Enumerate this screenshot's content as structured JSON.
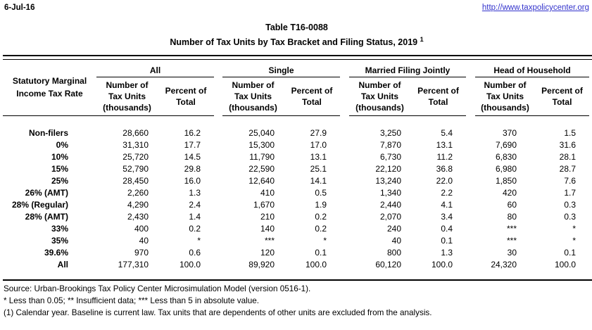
{
  "header": {
    "date": "6-Jul-16",
    "url": "http://www.taxpolicycenter.org",
    "link_color": "#3333cc"
  },
  "title": {
    "line1": "Table T16-0088",
    "line2": "Number of Tax Units by Tax Bracket and Filing Status, 2019",
    "footnote_marker": "1"
  },
  "table": {
    "stub_header": "Statutory Marginal Income Tax Rate",
    "group_headers": [
      "All",
      "Single",
      "Married Filing Jointly",
      "Head of Household"
    ],
    "subheader_number": "Number of Tax Units (thousands)",
    "subheader_percent": "Percent of Total",
    "rows": [
      {
        "label": "Non-filers",
        "values": [
          "28,660",
          "16.2",
          "25,040",
          "27.9",
          "3,250",
          "5.4",
          "370",
          "1.5"
        ]
      },
      {
        "label": "0%",
        "values": [
          "31,310",
          "17.7",
          "15,300",
          "17.0",
          "7,870",
          "13.1",
          "7,690",
          "31.6"
        ]
      },
      {
        "label": "10%",
        "values": [
          "25,720",
          "14.5",
          "11,790",
          "13.1",
          "6,730",
          "11.2",
          "6,830",
          "28.1"
        ]
      },
      {
        "label": "15%",
        "values": [
          "52,790",
          "29.8",
          "22,590",
          "25.1",
          "22,120",
          "36.8",
          "6,980",
          "28.7"
        ]
      },
      {
        "label": "25%",
        "values": [
          "28,450",
          "16.0",
          "12,640",
          "14.1",
          "13,240",
          "22.0",
          "1,850",
          "7.6"
        ]
      },
      {
        "label": "26% (AMT)",
        "values": [
          "2,260",
          "1.3",
          "410",
          "0.5",
          "1,340",
          "2.2",
          "420",
          "1.7"
        ]
      },
      {
        "label": "28% (Regular)",
        "values": [
          "4,290",
          "2.4",
          "1,670",
          "1.9",
          "2,440",
          "4.1",
          "60",
          "0.3"
        ]
      },
      {
        "label": "28% (AMT)",
        "values": [
          "2,430",
          "1.4",
          "210",
          "0.2",
          "2,070",
          "3.4",
          "80",
          "0.3"
        ]
      },
      {
        "label": "33%",
        "values": [
          "400",
          "0.2",
          "140",
          "0.2",
          "240",
          "0.4",
          "***",
          "*"
        ]
      },
      {
        "label": "35%",
        "values": [
          "40",
          "*",
          "***",
          "*",
          "40",
          "0.1",
          "***",
          "*"
        ]
      },
      {
        "label": "39.6%",
        "values": [
          "970",
          "0.6",
          "120",
          "0.1",
          "800",
          "1.3",
          "30",
          "0.1"
        ]
      },
      {
        "label": "All",
        "values": [
          "177,310",
          "100.0",
          "89,920",
          "100.0",
          "60,120",
          "100.0",
          "24,320",
          "100.0"
        ]
      }
    ]
  },
  "footnotes": {
    "source": "Source: Urban-Brookings Tax Policy Center Microsimulation Model (version 0516-1).",
    "symbols": "* Less than 0.05; ** Insufficient data; *** Less than 5 in absolute value.",
    "note1": "(1) Calendar year. Baseline is current law. Tax units that are dependents of other units are excluded from the analysis."
  }
}
